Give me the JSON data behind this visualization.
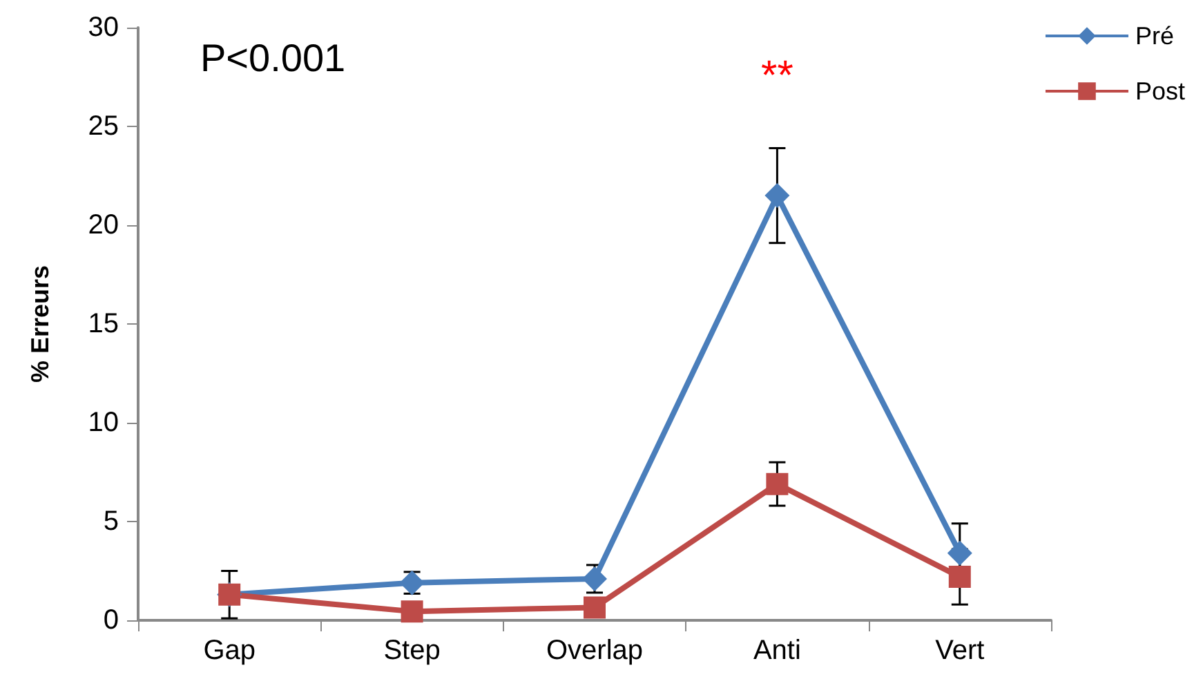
{
  "chart_data": {
    "type": "line",
    "ylabel": "% Erreurs",
    "categories": [
      "Gap",
      "Step",
      "Overlap",
      "Anti",
      "Vert"
    ],
    "series": [
      {
        "name": "Pré",
        "color": "#4a7ebb",
        "marker": "diamond",
        "values": [
          1.3,
          1.9,
          2.1,
          21.5,
          3.4
        ],
        "errors": [
          1.2,
          0.55,
          0.7,
          2.4,
          1.5
        ]
      },
      {
        "name": "Post",
        "color": "#be4b48",
        "marker": "square",
        "values": [
          1.3,
          0.45,
          0.65,
          6.9,
          2.2
        ],
        "errors": [
          null,
          null,
          null,
          1.1,
          1.4
        ]
      }
    ],
    "ylim": [
      0,
      30
    ],
    "yticks": [
      0,
      5,
      10,
      15,
      20,
      25,
      30
    ],
    "grid": false,
    "legend": "top right",
    "annotations": [
      "P<0.001",
      "**"
    ]
  }
}
